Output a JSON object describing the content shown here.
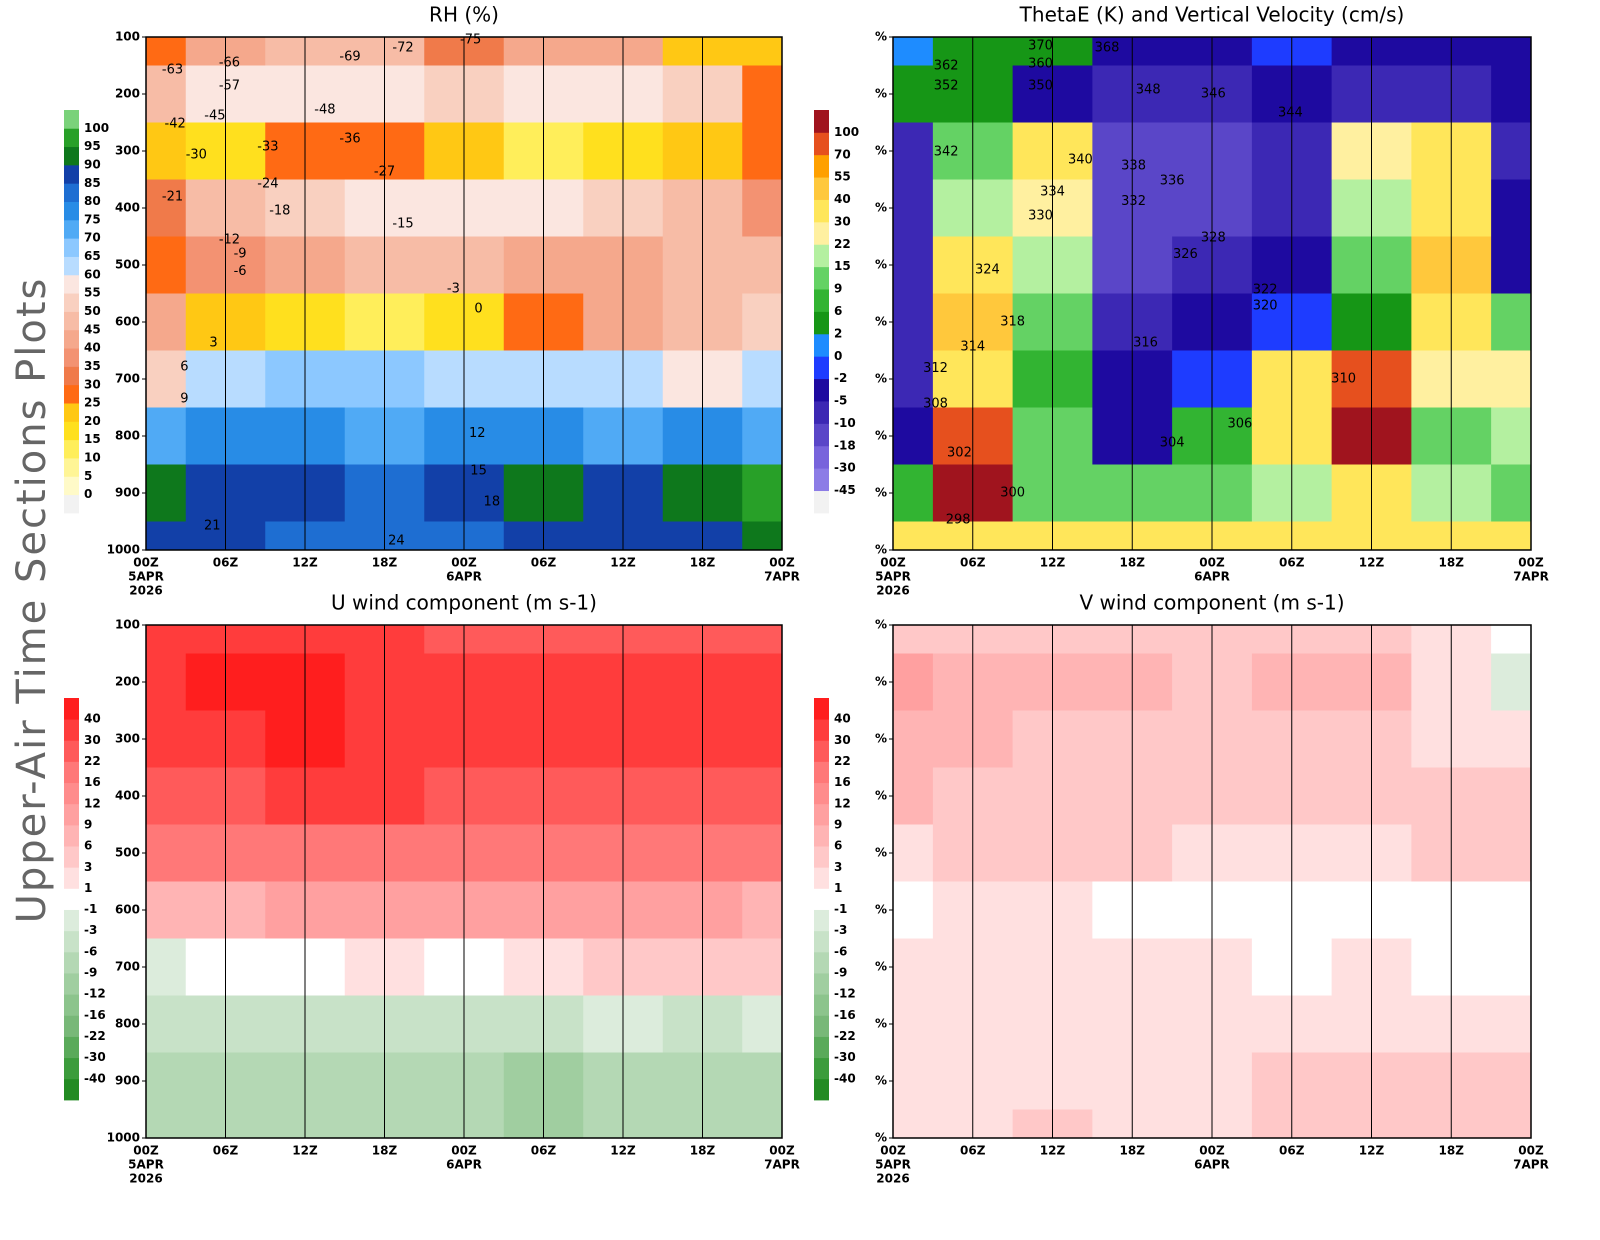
{
  "side_title": "Upper-Air Time Sections Plots",
  "time_axis": {
    "xlim": [
      0,
      48
    ],
    "xticks": [
      {
        "value": 0,
        "label": "00Z"
      },
      {
        "value": 6,
        "label": "06Z"
      },
      {
        "value": 12,
        "label": "12Z"
      },
      {
        "value": 18,
        "label": "18Z"
      },
      {
        "value": 24,
        "label": "00Z"
      },
      {
        "value": 30,
        "label": "06Z"
      },
      {
        "value": 36,
        "label": "12Z"
      },
      {
        "value": 42,
        "label": "18Z"
      },
      {
        "value": 48,
        "label": "00Z"
      }
    ],
    "dates": [
      {
        "value": 0,
        "label": "5APR"
      },
      {
        "value": 24,
        "label": "6APR"
      },
      {
        "value": 48,
        "label": "7APR"
      }
    ],
    "year": {
      "value": 0,
      "label": "2026"
    }
  },
  "chart_data": [
    {
      "type": "heatmap",
      "title": "RH (%)",
      "x": [
        0,
        6,
        12,
        18,
        24,
        30,
        36,
        42,
        48
      ],
      "y": [
        100,
        200,
        300,
        400,
        500,
        600,
        700,
        800,
        900,
        1000
      ],
      "ylim": [
        1000,
        100
      ],
      "yticks": [
        100,
        200,
        300,
        400,
        500,
        600,
        700,
        800,
        900,
        1000
      ],
      "values": [
        [
          25,
          40,
          45,
          45,
          30,
          40,
          40,
          20,
          20
        ],
        [
          45,
          55,
          55,
          55,
          50,
          55,
          55,
          50,
          25
        ],
        [
          20,
          15,
          25,
          25,
          20,
          10,
          15,
          20,
          25
        ],
        [
          30,
          45,
          50,
          55,
          55,
          55,
          50,
          45,
          35
        ],
        [
          25,
          35,
          40,
          45,
          45,
          40,
          40,
          45,
          45
        ],
        [
          40,
          20,
          15,
          10,
          15,
          25,
          40,
          45,
          50
        ],
        [
          50,
          60,
          65,
          65,
          60,
          60,
          60,
          55,
          60
        ],
        [
          70,
          75,
          75,
          70,
          75,
          75,
          70,
          75,
          70
        ],
        [
          90,
          85,
          85,
          80,
          85,
          90,
          85,
          90,
          95
        ],
        [
          85,
          85,
          80,
          80,
          80,
          85,
          85,
          85,
          90
        ]
      ],
      "colorbar": {
        "levels": [
          0,
          5,
          10,
          15,
          20,
          25,
          30,
          35,
          40,
          45,
          50,
          55,
          60,
          65,
          70,
          75,
          80,
          85,
          90,
          95,
          100
        ],
        "colors": [
          "#f2f2f2",
          "#fffac8",
          "#fff596",
          "#ffee5a",
          "#ffe01e",
          "#ffc814",
          "#ff6a14",
          "#f07a4a",
          "#f39272",
          "#f5a88c",
          "#f7bca6",
          "#f9d0c0",
          "#fbe6e0",
          "#b8dcff",
          "#8cc8ff",
          "#50aaf5",
          "#288ce6",
          "#1e6ed2",
          "#1240a8",
          "#0e781c",
          "#28a028",
          "#7ad27a"
        ]
      },
      "contour_labels": [
        {
          "x": 2.0,
          "y": 158,
          "value": -63
        },
        {
          "x": 15.4,
          "y": 135,
          "value": -69
        },
        {
          "x": 19.4,
          "y": 119,
          "value": -72
        },
        {
          "x": 24.5,
          "y": 105,
          "value": -75
        },
        {
          "x": 6.3,
          "y": 146,
          "value": -66
        },
        {
          "x": 6.3,
          "y": 186,
          "value": -57
        },
        {
          "x": 5.2,
          "y": 239,
          "value": -45
        },
        {
          "x": 2.2,
          "y": 253,
          "value": -42
        },
        {
          "x": 13.5,
          "y": 228,
          "value": -48
        },
        {
          "x": 15.4,
          "y": 279,
          "value": -36
        },
        {
          "x": 3.8,
          "y": 307,
          "value": -30
        },
        {
          "x": 9.2,
          "y": 293,
          "value": -33
        },
        {
          "x": 18.0,
          "y": 337,
          "value": -27
        },
        {
          "x": 9.2,
          "y": 358,
          "value": -24
        },
        {
          "x": 2.0,
          "y": 381,
          "value": -21
        },
        {
          "x": 10.1,
          "y": 405,
          "value": -18
        },
        {
          "x": 19.4,
          "y": 428,
          "value": -15
        },
        {
          "x": 6.3,
          "y": 456,
          "value": -12
        },
        {
          "x": 7.1,
          "y": 481,
          "value": -9
        },
        {
          "x": 7.1,
          "y": 511,
          "value": -6
        },
        {
          "x": 23.2,
          "y": 542,
          "value": -3
        },
        {
          "x": 25.1,
          "y": 577,
          "value": 0
        },
        {
          "x": 5.1,
          "y": 637,
          "value": 3
        },
        {
          "x": 2.9,
          "y": 679,
          "value": 6
        },
        {
          "x": 2.9,
          "y": 735,
          "value": 9
        },
        {
          "x": 25.0,
          "y": 796,
          "value": 12
        },
        {
          "x": 25.1,
          "y": 861,
          "value": 15
        },
        {
          "x": 26.1,
          "y": 916,
          "value": 18
        },
        {
          "x": 5.0,
          "y": 958,
          "value": 21
        },
        {
          "x": 18.9,
          "y": 984,
          "value": 24
        }
      ]
    },
    {
      "type": "heatmap",
      "title": "ThetaE (K) and Vertical Velocity (cm/s)",
      "x": [
        0,
        6,
        12,
        18,
        24,
        30,
        36,
        42,
        48
      ],
      "y": [
        100,
        200,
        300,
        400,
        500,
        600,
        700,
        800,
        900,
        1000
      ],
      "ylim": [
        1000,
        100
      ],
      "yticks": [
        {
          "value": 100,
          "label": "%"
        },
        {
          "value": 200,
          "label": "%"
        },
        {
          "value": 300,
          "label": "%"
        },
        {
          "value": 400,
          "label": "%"
        },
        {
          "value": 500,
          "label": "%"
        },
        {
          "value": 600,
          "label": "%"
        },
        {
          "value": 700,
          "label": "%"
        },
        {
          "value": 800,
          "label": "%"
        },
        {
          "value": 900,
          "label": "%"
        },
        {
          "value": 1000,
          "label": "%"
        }
      ],
      "values": [
        [
          0,
          5,
          2,
          -5,
          -5,
          -2,
          -5,
          -5,
          -5
        ],
        [
          2,
          5,
          -5,
          -10,
          -10,
          -5,
          -10,
          -10,
          -5
        ],
        [
          -10,
          9,
          30,
          -18,
          -18,
          -10,
          22,
          30,
          -10
        ],
        [
          -10,
          15,
          22,
          -18,
          -18,
          -10,
          15,
          30,
          -5
        ],
        [
          -10,
          30,
          15,
          -18,
          -10,
          -5,
          9,
          40,
          -5
        ],
        [
          -10,
          40,
          9,
          -10,
          -5,
          -2,
          2,
          30,
          9
        ],
        [
          -10,
          30,
          6,
          -5,
          -2,
          30,
          70,
          22,
          22
        ],
        [
          -5,
          70,
          9,
          -5,
          6,
          30,
          100,
          9,
          15
        ],
        [
          6,
          100,
          9,
          9,
          9,
          15,
          30,
          15,
          9
        ],
        [
          30,
          30,
          30,
          30,
          30,
          30,
          30,
          30,
          30
        ]
      ],
      "colorbar": {
        "levels": [
          -45,
          -30,
          -18,
          -10,
          -5,
          -2,
          0,
          2,
          6,
          9,
          15,
          22,
          30,
          40,
          55,
          70,
          100
        ],
        "colors": [
          "#f2f2f2",
          "#8c7ce6",
          "#7864dc",
          "#5a46c8",
          "#3c28b4",
          "#1e0aa0",
          "#1e3cff",
          "#1e8cff",
          "#169616",
          "#32b432",
          "#64d264",
          "#b4f0a0",
          "#fff0a0",
          "#ffe65a",
          "#ffc83c",
          "#ffa000",
          "#e6501e",
          "#a0141e"
        ]
      },
      "contour_labels": [
        {
          "x": 11.1,
          "y": 116,
          "value": 370
        },
        {
          "x": 16.1,
          "y": 119,
          "value": 368
        },
        {
          "x": 4.0,
          "y": 151,
          "value": 362
        },
        {
          "x": 4.0,
          "y": 186,
          "value": 352
        },
        {
          "x": 11.1,
          "y": 147,
          "value": 360
        },
        {
          "x": 11.1,
          "y": 186,
          "value": 350
        },
        {
          "x": 19.2,
          "y": 193,
          "value": 348
        },
        {
          "x": 24.1,
          "y": 200,
          "value": 346
        },
        {
          "x": 29.9,
          "y": 233,
          "value": 344
        },
        {
          "x": 4.0,
          "y": 302,
          "value": 342
        },
        {
          "x": 14.1,
          "y": 316,
          "value": 340
        },
        {
          "x": 18.1,
          "y": 326,
          "value": 338
        },
        {
          "x": 21.0,
          "y": 353,
          "value": 336
        },
        {
          "x": 12.0,
          "y": 372,
          "value": 334
        },
        {
          "x": 18.1,
          "y": 389,
          "value": 332
        },
        {
          "x": 11.1,
          "y": 414,
          "value": 330
        },
        {
          "x": 24.1,
          "y": 453,
          "value": 328
        },
        {
          "x": 22.0,
          "y": 482,
          "value": 326
        },
        {
          "x": 7.1,
          "y": 509,
          "value": 324
        },
        {
          "x": 28.0,
          "y": 544,
          "value": 322
        },
        {
          "x": 28.0,
          "y": 572,
          "value": 320
        },
        {
          "x": 9.0,
          "y": 600,
          "value": 318
        },
        {
          "x": 19.0,
          "y": 637,
          "value": 316
        },
        {
          "x": 6.0,
          "y": 644,
          "value": 314
        },
        {
          "x": 3.2,
          "y": 682,
          "value": 312
        },
        {
          "x": 33.9,
          "y": 700,
          "value": 310
        },
        {
          "x": 3.2,
          "y": 744,
          "value": 308
        },
        {
          "x": 26.1,
          "y": 779,
          "value": 306
        },
        {
          "x": 21.0,
          "y": 812,
          "value": 304
        },
        {
          "x": 5.0,
          "y": 830,
          "value": 302
        },
        {
          "x": 9.0,
          "y": 900,
          "value": 300
        },
        {
          "x": 4.9,
          "y": 947,
          "value": 298
        }
      ]
    },
    {
      "type": "heatmap",
      "title": "U wind component (m s-1)",
      "x": [
        0,
        6,
        12,
        18,
        24,
        30,
        36,
        42,
        48
      ],
      "y": [
        100,
        200,
        300,
        400,
        500,
        600,
        700,
        800,
        900,
        1000
      ],
      "ylim": [
        1000,
        100
      ],
      "yticks": [
        100,
        200,
        300,
        400,
        500,
        600,
        700,
        800,
        900,
        1000
      ],
      "values": [
        [
          30,
          30,
          30,
          30,
          28,
          25,
          25,
          25,
          25
        ],
        [
          35,
          40,
          42,
          38,
          35,
          35,
          33,
          33,
          30
        ],
        [
          35,
          38,
          40,
          38,
          35,
          33,
          33,
          30,
          30
        ],
        [
          25,
          28,
          30,
          30,
          28,
          28,
          26,
          25,
          25
        ],
        [
          16,
          18,
          20,
          20,
          18,
          18,
          16,
          16,
          16
        ],
        [
          6,
          8,
          9,
          10,
          10,
          10,
          9,
          9,
          8
        ],
        [
          -2,
          0,
          0,
          1,
          0,
          2,
          3,
          3,
          3
        ],
        [
          -4,
          -5,
          -5,
          -4,
          -5,
          -5,
          -3,
          -4,
          -3
        ],
        [
          -9,
          -9,
          -9,
          -8,
          -9,
          -10,
          -9,
          -9,
          -8
        ],
        [
          -8,
          -9,
          -9,
          -8,
          -9,
          -10,
          -9,
          -9,
          -8
        ]
      ],
      "colorbar": {
        "levels": [
          -40,
          -30,
          -22,
          -16,
          -12,
          -9,
          -6,
          -3,
          -1,
          1,
          3,
          6,
          9,
          12,
          16,
          22,
          30,
          40
        ],
        "colors": [
          "#228b22",
          "#3c9c3c",
          "#5aaa5a",
          "#78b878",
          "#8cc48c",
          "#a0cea0",
          "#b4d8b4",
          "#c8e2c8",
          "#dcecdc",
          "#ffffff",
          "#ffe0e0",
          "#ffc8c8",
          "#ffb4b4",
          "#ffa0a0",
          "#ff8c8c",
          "#ff7878",
          "#ff5a5a",
          "#ff3c3c",
          "#ff1e1e"
        ]
      }
    },
    {
      "type": "heatmap",
      "title": "V wind component (m s-1)",
      "x": [
        0,
        6,
        12,
        18,
        24,
        30,
        36,
        42,
        48
      ],
      "y": [
        100,
        200,
        300,
        400,
        500,
        600,
        700,
        800,
        900,
        1000
      ],
      "ylim": [
        1000,
        100
      ],
      "yticks": [
        {
          "value": 100,
          "label": "%"
        },
        {
          "value": 200,
          "label": "%"
        },
        {
          "value": 300,
          "label": "%"
        },
        {
          "value": 400,
          "label": "%"
        },
        {
          "value": 500,
          "label": "%"
        },
        {
          "value": 600,
          "label": "%"
        },
        {
          "value": 700,
          "label": "%"
        },
        {
          "value": 800,
          "label": "%"
        },
        {
          "value": 900,
          "label": "%"
        },
        {
          "value": 1000,
          "label": "%"
        }
      ],
      "values": [
        [
          3,
          5,
          4,
          4,
          4,
          4,
          3,
          1,
          -1
        ],
        [
          9,
          7,
          6,
          6,
          5,
          7,
          6,
          2,
          -2
        ],
        [
          6,
          6,
          5,
          5,
          5,
          4,
          4,
          2,
          1
        ],
        [
          6,
          5,
          5,
          4,
          5,
          5,
          4,
          4,
          4
        ],
        [
          2,
          3,
          3,
          3,
          2,
          2,
          2,
          3,
          3
        ],
        [
          0,
          1,
          1,
          0,
          0,
          0,
          0,
          -1,
          0
        ],
        [
          1,
          2,
          2,
          1,
          1,
          0,
          1,
          0,
          0
        ],
        [
          2,
          2,
          2,
          2,
          1,
          2,
          2,
          2,
          2
        ],
        [
          2,
          2,
          2,
          2,
          2,
          3,
          3,
          3,
          3
        ],
        [
          2,
          2,
          3,
          2,
          2,
          3,
          3,
          3,
          3
        ]
      ],
      "colorbar": {
        "levels": [
          -40,
          -30,
          -22,
          -16,
          -12,
          -9,
          -6,
          -3,
          -1,
          1,
          3,
          6,
          9,
          12,
          16,
          22,
          30,
          40
        ],
        "colors": [
          "#228b22",
          "#3c9c3c",
          "#5aaa5a",
          "#78b878",
          "#8cc48c",
          "#a0cea0",
          "#b4d8b4",
          "#c8e2c8",
          "#dcecdc",
          "#ffffff",
          "#ffe0e0",
          "#ffc8c8",
          "#ffb4b4",
          "#ffa0a0",
          "#ff8c8c",
          "#ff7878",
          "#ff5a5a",
          "#ff3c3c",
          "#ff1e1e"
        ]
      }
    }
  ]
}
